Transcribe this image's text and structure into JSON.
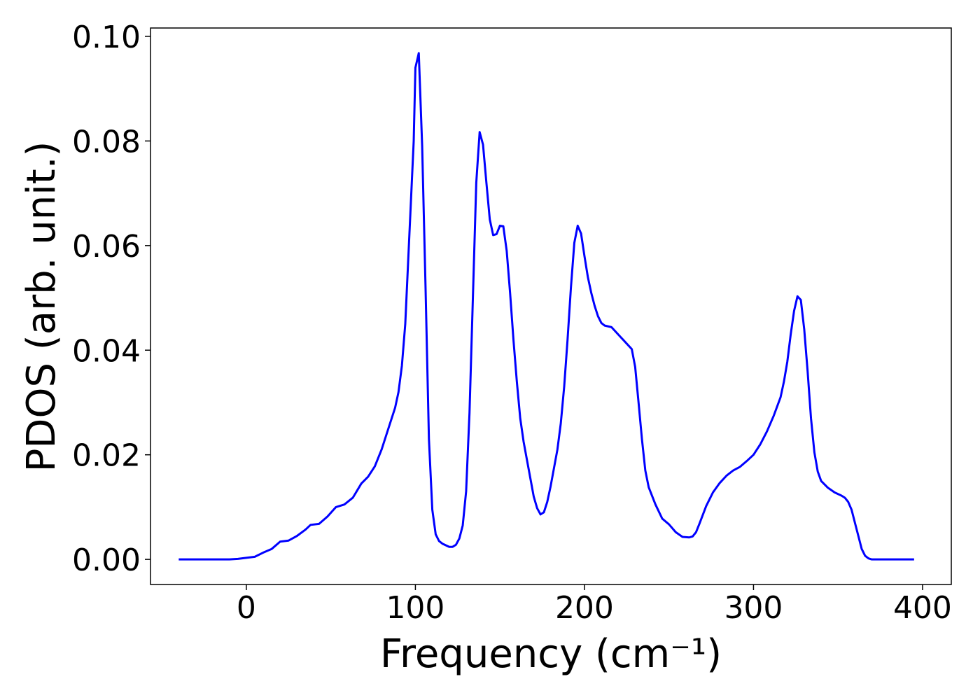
{
  "chart_data": {
    "type": "line",
    "xlabel": "Frequency (cm⁻¹)",
    "ylabel": "PDOS (arb. unit.)",
    "x": [
      -40,
      -10,
      -5,
      0,
      5,
      10,
      15,
      20,
      25,
      30,
      35,
      38,
      43,
      48,
      53,
      58,
      63,
      68,
      72,
      76,
      80,
      84,
      88,
      90,
      92,
      94,
      96,
      99,
      100,
      102,
      104,
      106,
      108,
      110,
      112,
      114,
      116,
      118,
      120,
      122,
      124,
      126,
      128,
      130,
      132,
      134,
      136,
      138,
      140,
      142,
      144,
      146,
      148,
      150,
      152,
      154,
      156,
      158,
      160,
      162,
      164,
      166,
      168,
      170,
      172,
      174,
      176,
      178,
      180,
      182,
      184,
      186,
      188,
      190,
      192,
      194,
      196,
      198,
      200,
      202,
      204,
      206,
      208,
      210,
      212,
      216,
      220,
      224,
      228,
      230,
      232,
      234,
      236,
      238,
      242,
      246,
      250,
      254,
      258,
      262,
      264,
      266,
      268,
      272,
      276,
      280,
      284,
      288,
      292,
      296,
      300,
      304,
      308,
      312,
      316,
      318,
      320,
      322,
      324,
      326,
      328,
      330,
      332,
      334,
      336,
      338,
      340,
      344,
      348,
      352,
      354,
      356,
      358,
      360,
      362,
      364,
      366,
      368,
      370,
      380,
      395
    ],
    "series": [
      {
        "name": "PDOS",
        "color": "#0000ff",
        "values": [
          0,
          0,
          0.0001,
          0.0003,
          0.0005,
          0.0013,
          0.002,
          0.0034,
          0.0036,
          0.0045,
          0.0057,
          0.0066,
          0.0068,
          0.0082,
          0.01,
          0.0105,
          0.0118,
          0.0145,
          0.0158,
          0.0178,
          0.021,
          0.025,
          0.029,
          0.032,
          0.037,
          0.045,
          0.059,
          0.08,
          0.094,
          0.0968,
          0.079,
          0.052,
          0.023,
          0.0095,
          0.0048,
          0.0035,
          0.003,
          0.0027,
          0.0024,
          0.0024,
          0.0028,
          0.004,
          0.0065,
          0.013,
          0.028,
          0.05,
          0.072,
          0.0817,
          0.0793,
          0.072,
          0.065,
          0.062,
          0.0622,
          0.0638,
          0.0637,
          0.059,
          0.051,
          0.042,
          0.034,
          0.027,
          0.0225,
          0.019,
          0.0155,
          0.012,
          0.0098,
          0.0086,
          0.009,
          0.011,
          0.014,
          0.0175,
          0.021,
          0.026,
          0.033,
          0.042,
          0.052,
          0.0605,
          0.0638,
          0.0623,
          0.058,
          0.054,
          0.051,
          0.0485,
          0.0465,
          0.0452,
          0.0447,
          0.0444,
          0.043,
          0.0416,
          0.0402,
          0.0368,
          0.03,
          0.023,
          0.017,
          0.0138,
          0.0105,
          0.0078,
          0.0067,
          0.0052,
          0.0043,
          0.0042,
          0.0044,
          0.0052,
          0.0068,
          0.0102,
          0.0128,
          0.0146,
          0.016,
          0.017,
          0.0177,
          0.0188,
          0.02,
          0.022,
          0.0245,
          0.0275,
          0.031,
          0.034,
          0.0378,
          0.043,
          0.0475,
          0.0503,
          0.0496,
          0.044,
          0.036,
          0.027,
          0.0205,
          0.0168,
          0.015,
          0.0137,
          0.0128,
          0.0122,
          0.0118,
          0.011,
          0.0095,
          0.007,
          0.0045,
          0.002,
          0.0007,
          0.0002,
          0,
          0,
          0
        ]
      }
    ],
    "xlim": [
      -56.7,
      417
    ],
    "xticks": [
      0,
      100,
      200,
      300,
      400
    ],
    "ylim": [
      -0.0048,
      0.1016
    ],
    "yticks": [
      {
        "value": 0,
        "label": "0.00"
      },
      {
        "value": 0.02,
        "label": "0.02"
      },
      {
        "value": 0.04,
        "label": "0.04"
      },
      {
        "value": 0.06,
        "label": "0.06"
      },
      {
        "value": 0.08,
        "label": "0.08"
      },
      {
        "value": 0.1,
        "label": "0.10"
      }
    ],
    "grid": false
  }
}
